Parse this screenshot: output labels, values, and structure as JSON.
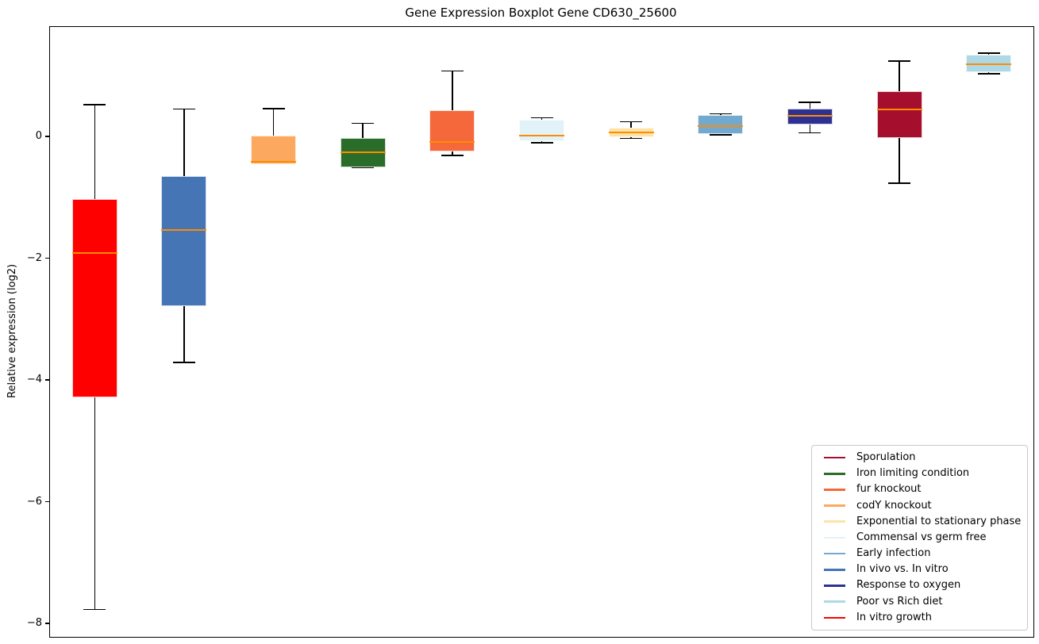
{
  "chart_data": {
    "type": "boxplot",
    "title": "Gene Expression Boxplot Gene CD630_25600",
    "xlabel": "",
    "ylabel": "Relative expression (log2)",
    "ylim": [
      -8.22,
      1.8
    ],
    "yticks": [
      0,
      -2,
      -4,
      -6,
      -8
    ],
    "ytick_labels": [
      "0",
      "−2",
      "−4",
      "−6",
      "−8"
    ],
    "grid": false,
    "legend_position": "lower right",
    "median_color": "#ff8c00",
    "whisker_color": "#000000",
    "box_edge_color": "rgba(255,255,255,0.8)",
    "series": [
      {
        "name": "In vitro growth",
        "color": "#ff0000",
        "whisker_low": -7.77,
        "q1": -4.28,
        "median": -1.92,
        "q3": -1.03,
        "whisker_high": 0.52
      },
      {
        "name": "In vivo vs. In vitro",
        "color": "#4575b4",
        "whisker_low": -3.71,
        "q1": -2.79,
        "median": -1.53,
        "q3": -0.65,
        "whisker_high": 0.45
      },
      {
        "name": "codY knockout",
        "color": "#fca85e",
        "whisker_low": -0.45,
        "q1": -0.45,
        "median": -0.41,
        "q3": 0.02,
        "whisker_high": 0.46
      },
      {
        "name": "Iron limiting condition",
        "color": "#2a6d2a",
        "whisker_low": -0.51,
        "q1": -0.51,
        "median": -0.26,
        "q3": -0.03,
        "whisker_high": 0.22
      },
      {
        "name": "fur knockout",
        "color": "#f4683c",
        "whisker_low": -0.31,
        "q1": -0.25,
        "median": -0.09,
        "q3": 0.43,
        "whisker_high": 1.08
      },
      {
        "name": "Commensal vs germ free",
        "color": "#e1f2f8",
        "whisker_low": -0.1,
        "q1": -0.08,
        "median": 0.01,
        "q3": 0.28,
        "whisker_high": 0.31
      },
      {
        "name": "Exponential to stationary phase",
        "color": "#fde3a7",
        "whisker_low": -0.03,
        "q1": -0.01,
        "median": 0.07,
        "q3": 0.14,
        "whisker_high": 0.24
      },
      {
        "name": "Early infection",
        "color": "#74a9cf",
        "whisker_low": 0.03,
        "q1": 0.04,
        "median": 0.17,
        "q3": 0.35,
        "whisker_high": 0.37
      },
      {
        "name": "Response to oxygen",
        "color": "#2e3192",
        "whisker_low": 0.06,
        "q1": 0.2,
        "median": 0.34,
        "q3": 0.46,
        "whisker_high": 0.56
      },
      {
        "name": "Sporulation",
        "color": "#a50f2d",
        "whisker_low": -0.77,
        "q1": -0.02,
        "median": 0.45,
        "q3": 0.74,
        "whisker_high": 1.24
      },
      {
        "name": "Poor vs Rich diet",
        "color": "#add8e6",
        "whisker_low": 1.03,
        "q1": 1.06,
        "median": 1.19,
        "q3": 1.35,
        "whisker_high": 1.37
      }
    ],
    "legend": [
      {
        "label": "Sporulation",
        "color": "#a50f2d"
      },
      {
        "label": "Iron limiting condition",
        "color": "#2a6d2a"
      },
      {
        "label": "fur knockout",
        "color": "#f4683c"
      },
      {
        "label": "codY knockout",
        "color": "#fca85e"
      },
      {
        "label": "Exponential to stationary phase",
        "color": "#fde3a7"
      },
      {
        "label": "Commensal vs germ free",
        "color": "#e1f2f8"
      },
      {
        "label": "Early infection",
        "color": "#74a9cf"
      },
      {
        "label": "In vivo vs. In vitro",
        "color": "#4575b4"
      },
      {
        "label": "Response to oxygen",
        "color": "#2e3192"
      },
      {
        "label": "Poor vs Rich diet",
        "color": "#add8e6"
      },
      {
        "label": "In vitro growth",
        "color": "#ff0000"
      }
    ]
  }
}
